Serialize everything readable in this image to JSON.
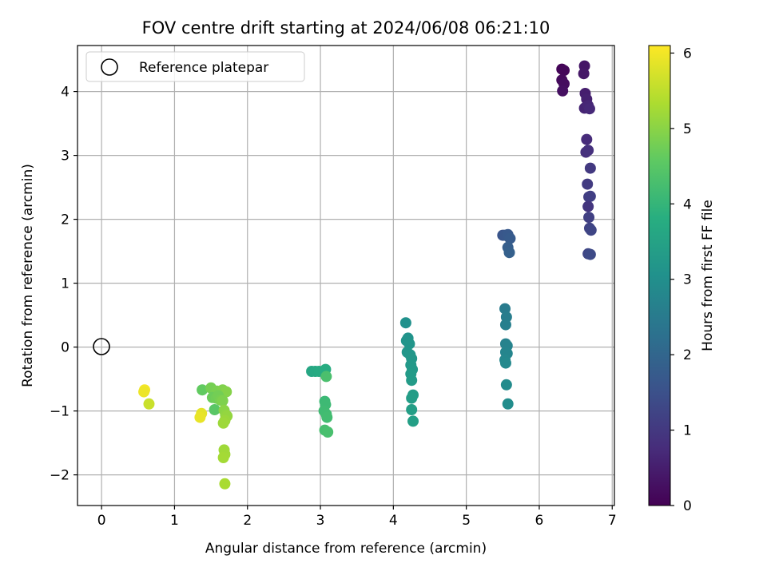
{
  "chart_data": {
    "type": "scatter",
    "title": "FOV centre drift starting at 2024/06/08 06:21:10",
    "xlabel": "Angular distance from reference (arcmin)",
    "ylabel": "Rotation from reference (arcmin)",
    "xlim": [
      -0.33,
      7.03
    ],
    "ylim": [
      -2.48,
      4.72
    ],
    "xticks": [
      0,
      1,
      2,
      3,
      4,
      5,
      6,
      7
    ],
    "yticks": [
      -2,
      -1,
      0,
      1,
      2,
      3,
      4
    ],
    "xtick_labels": [
      "0",
      "1",
      "2",
      "3",
      "4",
      "5",
      "6",
      "7"
    ],
    "ytick_labels": [
      "−2",
      "−1",
      "0",
      "1",
      "2",
      "3",
      "4"
    ],
    "grid": true,
    "legend": {
      "placement": "top-left",
      "entries": [
        "Reference platepar"
      ]
    },
    "reference_point": {
      "x": 0,
      "y": 0
    },
    "colorbar": {
      "label": "Hours from first FF file",
      "range": [
        0,
        6.1
      ],
      "ticks": [
        0,
        1,
        2,
        3,
        4,
        5,
        6
      ],
      "tick_labels": [
        "0",
        "1",
        "2",
        "3",
        "4",
        "5",
        "6"
      ],
      "colormap": "viridis",
      "colors": [
        "#440154",
        "#3b528b",
        "#21918c",
        "#5ec962",
        "#fde725"
      ]
    },
    "series": [
      {
        "points": [
          {
            "x": 6.31,
            "y": 4.35,
            "h": 0.05
          },
          {
            "x": 6.34,
            "y": 4.33,
            "h": 0.1
          },
          {
            "x": 6.31,
            "y": 4.18,
            "h": 0.15
          },
          {
            "x": 6.34,
            "y": 4.12,
            "h": 0.2
          },
          {
            "x": 6.32,
            "y": 4.01,
            "h": 0.25
          },
          {
            "x": 6.62,
            "y": 4.4,
            "h": 0.35
          },
          {
            "x": 6.61,
            "y": 4.28,
            "h": 0.4
          },
          {
            "x": 6.63,
            "y": 3.97,
            "h": 0.5
          },
          {
            "x": 6.65,
            "y": 3.88,
            "h": 0.55
          },
          {
            "x": 6.62,
            "y": 3.74,
            "h": 0.6
          },
          {
            "x": 6.67,
            "y": 3.78,
            "h": 0.65
          },
          {
            "x": 6.69,
            "y": 3.73,
            "h": 0.7
          },
          {
            "x": 6.65,
            "y": 3.25,
            "h": 0.75
          },
          {
            "x": 6.64,
            "y": 3.05,
            "h": 0.8
          },
          {
            "x": 6.67,
            "y": 3.08,
            "h": 0.85
          },
          {
            "x": 6.7,
            "y": 2.8,
            "h": 1.0
          },
          {
            "x": 6.66,
            "y": 2.55,
            "h": 1.05
          },
          {
            "x": 6.68,
            "y": 2.35,
            "h": 1.1
          },
          {
            "x": 6.7,
            "y": 2.36,
            "h": 1.12
          },
          {
            "x": 6.67,
            "y": 2.2,
            "h": 0.95
          },
          {
            "x": 6.68,
            "y": 2.03,
            "h": 1.15
          },
          {
            "x": 6.69,
            "y": 1.86,
            "h": 1.2
          },
          {
            "x": 6.71,
            "y": 1.83,
            "h": 1.25
          },
          {
            "x": 6.67,
            "y": 1.46,
            "h": 1.3
          },
          {
            "x": 6.7,
            "y": 1.45,
            "h": 1.35
          },
          {
            "x": 5.5,
            "y": 1.75,
            "h": 1.6
          },
          {
            "x": 5.53,
            "y": 1.75,
            "h": 1.65
          },
          {
            "x": 5.57,
            "y": 1.76,
            "h": 1.7
          },
          {
            "x": 5.6,
            "y": 1.7,
            "h": 1.75
          },
          {
            "x": 5.57,
            "y": 1.56,
            "h": 1.8
          },
          {
            "x": 5.59,
            "y": 1.48,
            "h": 1.85
          },
          {
            "x": 5.53,
            "y": 0.6,
            "h": 2.5
          },
          {
            "x": 5.55,
            "y": 0.47,
            "h": 2.55
          },
          {
            "x": 5.54,
            "y": 0.35,
            "h": 2.6
          },
          {
            "x": 5.54,
            "y": 0.05,
            "h": 2.65
          },
          {
            "x": 5.56,
            "y": 0.02,
            "h": 2.7
          },
          {
            "x": 5.54,
            "y": -0.08,
            "h": 2.72
          },
          {
            "x": 5.56,
            "y": -0.1,
            "h": 2.75
          },
          {
            "x": 5.53,
            "y": -0.2,
            "h": 2.8
          },
          {
            "x": 5.54,
            "y": -0.25,
            "h": 2.85
          },
          {
            "x": 5.55,
            "y": -0.59,
            "h": 2.9
          },
          {
            "x": 5.57,
            "y": -0.89,
            "h": 2.95
          },
          {
            "x": 4.17,
            "y": 0.38,
            "h": 3.05
          },
          {
            "x": 4.2,
            "y": 0.14,
            "h": 3.1
          },
          {
            "x": 4.18,
            "y": 0.1,
            "h": 3.12
          },
          {
            "x": 4.22,
            "y": 0.05,
            "h": 3.15
          },
          {
            "x": 4.19,
            "y": -0.08,
            "h": 3.17
          },
          {
            "x": 4.23,
            "y": -0.12,
            "h": 3.2
          },
          {
            "x": 4.25,
            "y": -0.18,
            "h": 3.22
          },
          {
            "x": 4.24,
            "y": -0.28,
            "h": 3.25
          },
          {
            "x": 4.26,
            "y": -0.35,
            "h": 3.27
          },
          {
            "x": 4.24,
            "y": -0.42,
            "h": 3.3
          },
          {
            "x": 4.25,
            "y": -0.52,
            "h": 3.32
          },
          {
            "x": 4.27,
            "y": -0.75,
            "h": 3.35
          },
          {
            "x": 4.25,
            "y": -0.8,
            "h": 3.37
          },
          {
            "x": 4.25,
            "y": -0.98,
            "h": 3.4
          },
          {
            "x": 4.27,
            "y": -1.16,
            "h": 3.42
          },
          {
            "x": 2.88,
            "y": -0.38,
            "h": 3.6
          },
          {
            "x": 2.93,
            "y": -0.38,
            "h": 3.65
          },
          {
            "x": 2.98,
            "y": -0.38,
            "h": 3.7
          },
          {
            "x": 3.07,
            "y": -0.35,
            "h": 3.75
          },
          {
            "x": 3.08,
            "y": -0.46,
            "h": 4.3
          },
          {
            "x": 3.06,
            "y": -0.85,
            "h": 4.1
          },
          {
            "x": 3.07,
            "y": -0.9,
            "h": 4.12
          },
          {
            "x": 3.05,
            "y": -1.0,
            "h": 4.15
          },
          {
            "x": 3.08,
            "y": -1.05,
            "h": 4.17
          },
          {
            "x": 3.09,
            "y": -1.1,
            "h": 4.2
          },
          {
            "x": 3.06,
            "y": -1.3,
            "h": 4.25
          },
          {
            "x": 3.1,
            "y": -1.33,
            "h": 4.28
          },
          {
            "x": 1.38,
            "y": -0.67,
            "h": 4.6
          },
          {
            "x": 1.5,
            "y": -0.64,
            "h": 4.8
          },
          {
            "x": 1.58,
            "y": -0.69,
            "h": 4.85
          },
          {
            "x": 1.66,
            "y": -0.67,
            "h": 4.9
          },
          {
            "x": 1.71,
            "y": -0.7,
            "h": 4.95
          },
          {
            "x": 1.52,
            "y": -0.79,
            "h": 4.7
          },
          {
            "x": 1.57,
            "y": -0.8,
            "h": 4.75
          },
          {
            "x": 1.6,
            "y": -0.76,
            "h": 4.78
          },
          {
            "x": 1.63,
            "y": -0.83,
            "h": 4.82
          },
          {
            "x": 1.66,
            "y": -0.84,
            "h": 4.88
          },
          {
            "x": 1.55,
            "y": -0.98,
            "h": 4.5
          },
          {
            "x": 1.68,
            "y": -0.99,
            "h": 5.0
          },
          {
            "x": 1.7,
            "y": -1.06,
            "h": 5.05
          },
          {
            "x": 1.72,
            "y": -1.08,
            "h": 5.1
          },
          {
            "x": 1.69,
            "y": -1.15,
            "h": 5.15
          },
          {
            "x": 1.67,
            "y": -1.19,
            "h": 5.18
          },
          {
            "x": 1.68,
            "y": -1.61,
            "h": 5.2
          },
          {
            "x": 1.69,
            "y": -1.68,
            "h": 5.22
          },
          {
            "x": 1.67,
            "y": -1.73,
            "h": 5.25
          },
          {
            "x": 1.69,
            "y": -2.14,
            "h": 5.3
          },
          {
            "x": 1.37,
            "y": -1.04,
            "h": 5.85
          },
          {
            "x": 1.35,
            "y": -1.1,
            "h": 5.9
          },
          {
            "x": 0.59,
            "y": -0.67,
            "h": 6.0
          },
          {
            "x": 0.58,
            "y": -0.7,
            "h": 5.95
          },
          {
            "x": 0.65,
            "y": -0.89,
            "h": 5.6
          }
        ]
      }
    ]
  }
}
